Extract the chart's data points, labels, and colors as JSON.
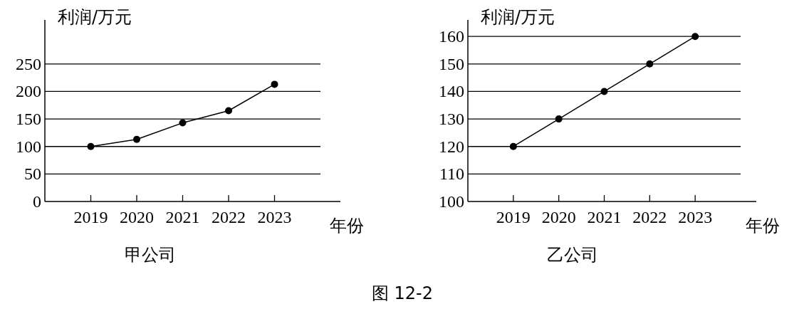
{
  "chart_data": [
    {
      "type": "line",
      "title": "甲公司",
      "xlabel": "年份",
      "ylabel": "利润/万元",
      "categories": [
        "2019",
        "2020",
        "2021",
        "2022",
        "2023"
      ],
      "series": [
        {
          "color": "#000000",
          "values": [
            100,
            113,
            143,
            165,
            213
          ]
        }
      ],
      "ylim": [
        0,
        330
      ],
      "yticks": [
        0,
        50,
        100,
        150,
        200,
        250
      ],
      "grid": "y",
      "marker": "circle"
    },
    {
      "type": "line",
      "title": "乙公司",
      "xlabel": "年份",
      "ylabel": "利润/万元",
      "categories": [
        "2019",
        "2020",
        "2021",
        "2022",
        "2023"
      ],
      "series": [
        {
          "color": "#000000",
          "values": [
            120,
            130,
            140,
            150,
            160
          ]
        }
      ],
      "ylim": [
        100,
        166
      ],
      "yticks": [
        100,
        110,
        120,
        130,
        140,
        150,
        160
      ],
      "grid": "y",
      "marker": "circle",
      "annotations": [
        "图 12-2"
      ]
    }
  ]
}
